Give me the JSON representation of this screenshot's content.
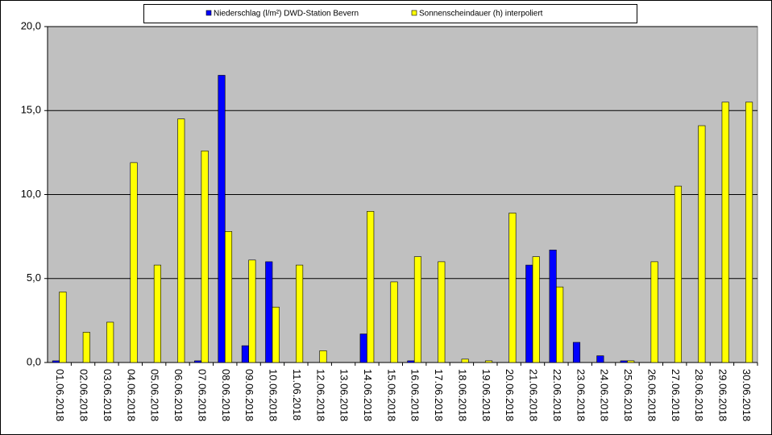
{
  "chart_data": {
    "type": "bar",
    "categories": [
      "01.06.2018",
      "02.06.2018",
      "03.06.2018",
      "04.06.2018",
      "05.06.2018",
      "06.06.2018",
      "07.06.2018",
      "08.06.2018",
      "09.06.2018",
      "10.06.2018",
      "11.06.2018",
      "12.06.2018",
      "13.06.2018",
      "14.06.2018",
      "15.06.2018",
      "16.06.2018",
      "17.06.2018",
      "18.06.2018",
      "19.06.2018",
      "20.06.2018",
      "21.06.2018",
      "22.06.2018",
      "23.06.2018",
      "24.06.2018",
      "25.06.2018",
      "26.06.2018",
      "27.06.2018",
      "28.06.2018",
      "29.06.2018",
      "30.06.2018"
    ],
    "series": [
      {
        "name": "Niederschlag (l/m²) DWD-Station Bevern",
        "color": "#0000ff",
        "values": [
          0.1,
          0,
          0,
          0,
          0,
          0,
          0.1,
          17.1,
          1.0,
          6.0,
          0,
          0,
          0,
          1.7,
          0,
          0.1,
          0,
          0,
          0,
          0,
          5.8,
          6.7,
          1.2,
          0.4,
          0.1,
          0,
          0,
          0,
          0,
          0
        ]
      },
      {
        "name": "Sonnenscheindauer (h) interpoliert",
        "color": "#ffff00",
        "values": [
          4.2,
          1.8,
          2.4,
          11.9,
          5.8,
          14.5,
          12.6,
          7.8,
          6.1,
          3.3,
          5.8,
          0.7,
          0,
          9.0,
          4.8,
          6.3,
          6.0,
          0.2,
          0.1,
          8.9,
          6.3,
          4.5,
          0,
          0,
          0.1,
          6.0,
          10.5,
          14.1,
          15.5,
          15.5
        ]
      }
    ],
    "ylim": [
      0,
      20
    ],
    "yticks": [
      {
        "value": 0,
        "label": "0,0"
      },
      {
        "value": 5,
        "label": "5,0"
      },
      {
        "value": 10,
        "label": "10,0"
      },
      {
        "value": 15,
        "label": "15,0"
      },
      {
        "value": 20,
        "label": "20,0"
      }
    ],
    "grid": true,
    "plot_background": "#c0c0c0",
    "legend": "top"
  }
}
